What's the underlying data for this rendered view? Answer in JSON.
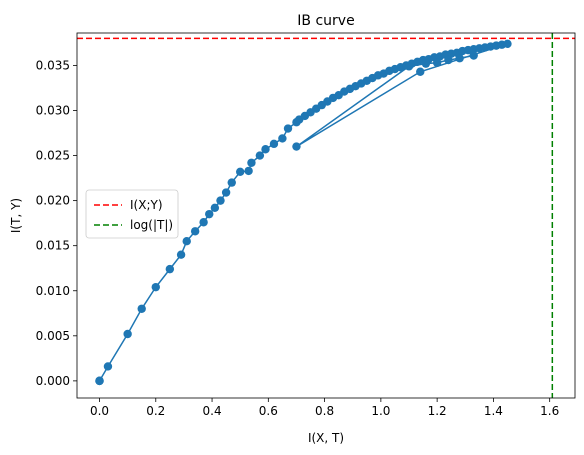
{
  "chart_data": {
    "type": "line",
    "title": "IB curve",
    "xlabel": "I(X, T)",
    "ylabel": "I(T, Y)",
    "xlim": [
      -0.08,
      1.69
    ],
    "ylim": [
      -0.0019,
      0.0386
    ],
    "xticks": [
      0.0,
      0.2,
      0.4,
      0.6,
      0.8,
      1.0,
      1.2,
      1.4,
      1.6
    ],
    "xtick_labels": [
      "0.0",
      "0.2",
      "0.4",
      "0.6",
      "0.8",
      "1.0",
      "1.2",
      "1.4",
      "1.6"
    ],
    "yticks": [
      0.0,
      0.005,
      0.01,
      0.015,
      0.02,
      0.025,
      0.03,
      0.035
    ],
    "ytick_labels": [
      "0.000",
      "0.005",
      "0.010",
      "0.015",
      "0.020",
      "0.025",
      "0.030",
      "0.035"
    ],
    "grid": false,
    "legend": {
      "placement": "center-left",
      "entries": [
        {
          "label": "I(X;Y)",
          "color": "#ff0000",
          "style": "dashed"
        },
        {
          "label": "log(|T|)",
          "color": "#008000",
          "style": "dashed"
        }
      ]
    },
    "series": [
      {
        "color": "#1f77b4",
        "marker": "circle",
        "x": [
          0.0,
          0.0,
          0.0,
          0.03,
          0.1,
          0.15,
          0.2,
          0.25,
          0.29,
          0.31,
          0.34,
          0.37,
          0.39,
          0.41,
          0.43,
          0.45,
          0.47,
          0.5,
          0.53,
          0.54,
          0.57,
          0.59,
          0.62,
          0.65,
          0.67,
          0.7,
          0.71,
          0.73,
          0.75,
          0.77,
          0.79,
          0.81,
          0.83,
          0.85,
          0.87,
          0.89,
          0.91,
          0.93,
          0.95,
          0.97,
          0.99,
          1.01,
          1.03,
          1.05,
          1.07,
          1.09,
          1.11,
          1.13,
          1.15,
          1.17,
          1.19,
          1.21,
          1.23,
          1.25,
          1.27,
          1.29,
          1.31,
          1.33,
          1.35,
          1.37,
          1.39,
          1.41,
          1.43,
          1.45,
          1.14,
          0.7,
          1.1,
          1.16,
          1.2,
          1.24,
          1.28,
          1.33
        ],
        "y": [
          0.0,
          0.0,
          0.0,
          0.0016,
          0.0052,
          0.008,
          0.0104,
          0.0124,
          0.014,
          0.0155,
          0.0166,
          0.0176,
          0.0185,
          0.0192,
          0.02,
          0.0209,
          0.022,
          0.0232,
          0.0233,
          0.0242,
          0.025,
          0.0257,
          0.0263,
          0.0269,
          0.028,
          0.0287,
          0.029,
          0.0294,
          0.0298,
          0.0302,
          0.0306,
          0.031,
          0.0314,
          0.0317,
          0.0321,
          0.0324,
          0.0327,
          0.033,
          0.0333,
          0.0336,
          0.0339,
          0.0341,
          0.0344,
          0.0346,
          0.0348,
          0.035,
          0.0352,
          0.0354,
          0.0356,
          0.0357,
          0.0359,
          0.036,
          0.0362,
          0.0363,
          0.0364,
          0.0366,
          0.0367,
          0.0368,
          0.0369,
          0.037,
          0.0371,
          0.0372,
          0.0373,
          0.0374,
          0.0343,
          0.026,
          0.0349,
          0.0352,
          0.0353,
          0.0356,
          0.0358,
          0.0361
        ]
      }
    ],
    "reference_lines": [
      {
        "orientation": "horizontal",
        "value": 0.038,
        "color": "#ff0000",
        "label": "I(X;Y)"
      },
      {
        "orientation": "vertical",
        "value": 1.6094,
        "color": "#008000",
        "label": "log(|T|)"
      }
    ]
  }
}
